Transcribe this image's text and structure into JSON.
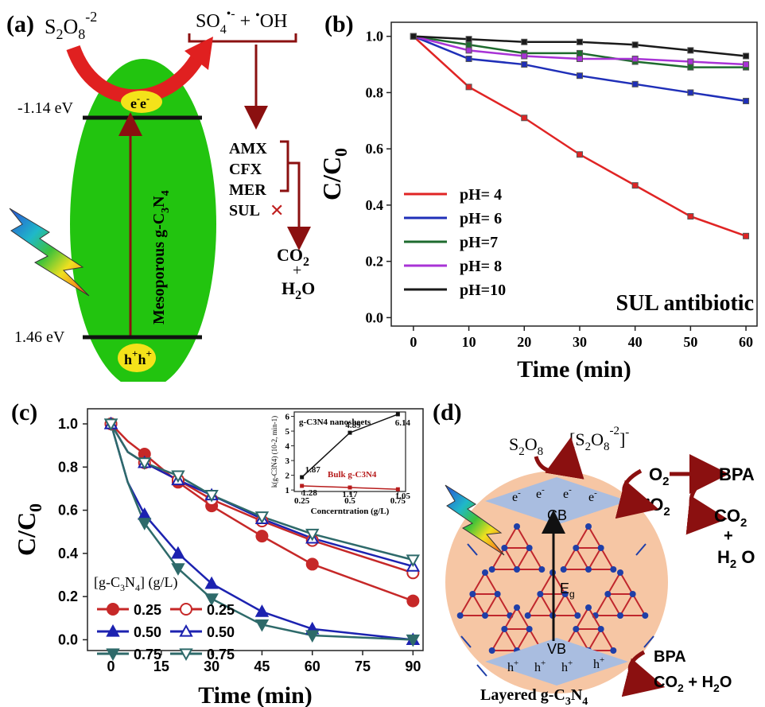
{
  "panel_a": {
    "label": "(a)",
    "persulfate": "S2O8-2",
    "radicals": "SO4•- + •OH",
    "cb_energy": "-1.14 eV",
    "vb_energy": "1.46 eV",
    "electrons": "e- e-",
    "holes": "h+ h+",
    "catalyst": "Mesoporous g-C3N4",
    "pollutants": [
      "AMX",
      "CFX",
      "MER",
      "SUL"
    ],
    "sul_mark": "✕",
    "products": [
      "CO2",
      "+",
      "H2O"
    ],
    "colors": {
      "ellipse": "#22c40f",
      "arrow": "#8b1010",
      "charge": "#f4e21a"
    }
  },
  "chart_data": [
    {
      "panel": "(b)",
      "type": "line",
      "ylabel": "C/C0",
      "xlabel": "Time (min)",
      "annotation": "SUL antibiotic",
      "x": [
        0,
        10,
        20,
        30,
        40,
        50,
        60
      ],
      "xlim": [
        -4,
        62
      ],
      "ylim": [
        -0.03,
        1.05
      ],
      "xticks": [
        0,
        10,
        20,
        30,
        40,
        50,
        60
      ],
      "yticks": [
        0.0,
        0.2,
        0.4,
        0.6,
        0.8,
        1.0
      ],
      "legend_position": "bottom-left",
      "series": [
        {
          "name": "pH= 4",
          "color": "#e02424",
          "values": [
            1.0,
            0.82,
            0.71,
            0.58,
            0.47,
            0.36,
            0.29
          ]
        },
        {
          "name": "pH= 6",
          "color": "#1f2fb8",
          "values": [
            1.0,
            0.92,
            0.9,
            0.86,
            0.83,
            0.8,
            0.77
          ]
        },
        {
          "name": "pH=7",
          "color": "#1e6b2e",
          "values": [
            1.0,
            0.97,
            0.94,
            0.94,
            0.91,
            0.89,
            0.89
          ]
        },
        {
          "name": "pH= 8",
          "color": "#a833d6",
          "values": [
            1.0,
            0.95,
            0.93,
            0.92,
            0.92,
            0.91,
            0.9
          ]
        },
        {
          "name": "pH=10",
          "color": "#1a1a1a",
          "values": [
            1.0,
            0.99,
            0.98,
            0.98,
            0.97,
            0.95,
            0.93
          ]
        }
      ]
    },
    {
      "panel": "(c)",
      "type": "line",
      "ylabel": "C/C0",
      "xlabel": "Time (min)",
      "x": [
        0,
        5,
        10,
        20,
        30,
        45,
        60,
        90
      ],
      "xlim": [
        -7,
        93
      ],
      "ylim": [
        -0.05,
        1.07
      ],
      "xticks": [
        0,
        15,
        30,
        45,
        60,
        75,
        90
      ],
      "yticks": [
        0.0,
        0.2,
        0.4,
        0.6,
        0.8,
        1.0
      ],
      "legend_title": "[g-C3N4] (g/L)",
      "legend_position": "bottom-left",
      "series": [
        {
          "name": "0.25",
          "color": "#c62828",
          "marker": "circle",
          "filled": true,
          "values": [
            1.0,
            0.92,
            0.86,
            0.73,
            0.62,
            0.48,
            0.35,
            0.18
          ]
        },
        {
          "name": "0.25",
          "color": "#c62828",
          "marker": "circle",
          "filled": false,
          "values": [
            1.0,
            0.87,
            0.82,
            0.74,
            0.65,
            0.55,
            0.46,
            0.31
          ]
        },
        {
          "name": "0.50",
          "color": "#1c22b0",
          "marker": "triangle",
          "filled": true,
          "values": [
            1.0,
            0.73,
            0.58,
            0.4,
            0.26,
            0.13,
            0.05,
            0.0
          ]
        },
        {
          "name": "0.50",
          "color": "#1c22b0",
          "marker": "triangle",
          "filled": false,
          "values": [
            1.0,
            0.87,
            0.82,
            0.74,
            0.67,
            0.56,
            0.47,
            0.34
          ]
        },
        {
          "name": "0.75",
          "color": "#2e6a6a",
          "marker": "triangle-down",
          "filled": true,
          "values": [
            1.0,
            0.73,
            0.54,
            0.33,
            0.19,
            0.07,
            0.02,
            0.0
          ]
        },
        {
          "name": "0.75",
          "color": "#2e6a6a",
          "marker": "triangle-down",
          "filled": false,
          "values": [
            1.0,
            0.87,
            0.82,
            0.76,
            0.67,
            0.57,
            0.49,
            0.37
          ]
        }
      ],
      "inset": {
        "type": "line",
        "ylabel": "k(g-C3N4) (10-2, min-1)",
        "xlabel": "Concerntration (g/L)",
        "x": [
          0.25,
          0.5,
          0.75
        ],
        "xticks": [
          0.25,
          0.5,
          0.75
        ],
        "yticks": [
          1,
          2,
          3,
          4,
          5,
          6
        ],
        "ylim": [
          0.9,
          6.3
        ],
        "xlim": [
          0.21,
          0.79
        ],
        "series": [
          {
            "name": "g-C3N4 nanosheets",
            "color": "#111111",
            "values": [
              1.87,
              4.89,
              6.14
            ],
            "labels": [
              "1.87",
              "4.89",
              "6.14"
            ]
          },
          {
            "name": "Bulk g-C3N4",
            "color": "#b71c1c",
            "values": [
              1.28,
              1.17,
              1.05
            ],
            "labels": [
              "1.28",
              "1.17",
              "1.05"
            ]
          }
        ]
      }
    }
  ],
  "panel_d": {
    "label": "(d)",
    "persulfate": "S2O8",
    "radical_complex": "[S2O8-2]-",
    "oxygen": "O2",
    "superoxide": "•O2",
    "electrons": [
      "e-",
      "e-",
      "e-",
      "e-"
    ],
    "holes": [
      "h+",
      "h+",
      "h+",
      "h+"
    ],
    "cb": "CB",
    "vb": "VB",
    "gap": "Eg",
    "bpa_top": "BPA",
    "co2_top": "CO2",
    "plus": "+",
    "h2o_top": "H2O",
    "bpa_bottom": "BPA",
    "products_bottom": "CO2 + H2O",
    "catalyst": "Layered g-C3N4",
    "colors": {
      "circle": "#f6c6a4",
      "band": "#a9bde0",
      "arrow": "#8b1010",
      "lattice_line": "#c0272d",
      "lattice_node": "#1f3fa8"
    }
  }
}
